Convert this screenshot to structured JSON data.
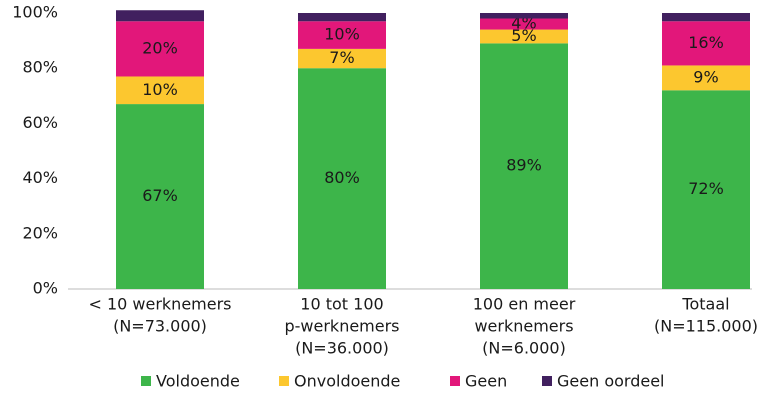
{
  "chart_data": {
    "type": "stacked_bar",
    "categories": [
      [
        "< 10 werknemers",
        "(N=73.000)"
      ],
      [
        "10 tot 100",
        "p-werknemers",
        "(N=36.000)"
      ],
      [
        "100 en meer",
        "werknemers",
        "(N=6.000)"
      ],
      [
        "Totaal",
        "(N=115.000)"
      ]
    ],
    "series": [
      {
        "name": "Voldoende",
        "color": "#3db54a",
        "values": [
          67,
          80,
          89,
          72
        ],
        "value_labels": [
          "67%",
          "80%",
          "89%",
          "72%"
        ]
      },
      {
        "name": "Onvoldoende",
        "color": "#fcc72f",
        "values": [
          10,
          7,
          5,
          9
        ],
        "value_labels": [
          "10%",
          "7%",
          "5%",
          "9%"
        ]
      },
      {
        "name": "Geen",
        "color": "#e2177a",
        "values": [
          20,
          10,
          4,
          16
        ],
        "value_labels": [
          "20%",
          "10%",
          "4%",
          "16%"
        ]
      },
      {
        "name": "Geen oordeel",
        "color": "#41205f",
        "values": [
          4,
          3,
          2,
          3
        ]
      }
    ],
    "ylim": [
      0,
      100
    ],
    "yticks": [
      {
        "value": 0,
        "label": "0%"
      },
      {
        "value": 20,
        "label": "20%"
      },
      {
        "value": 40,
        "label": "40%"
      },
      {
        "value": 60,
        "label": "60%"
      },
      {
        "value": 80,
        "label": "80%"
      },
      {
        "value": 100,
        "label": "100%"
      }
    ],
    "legend": "bottom"
  }
}
